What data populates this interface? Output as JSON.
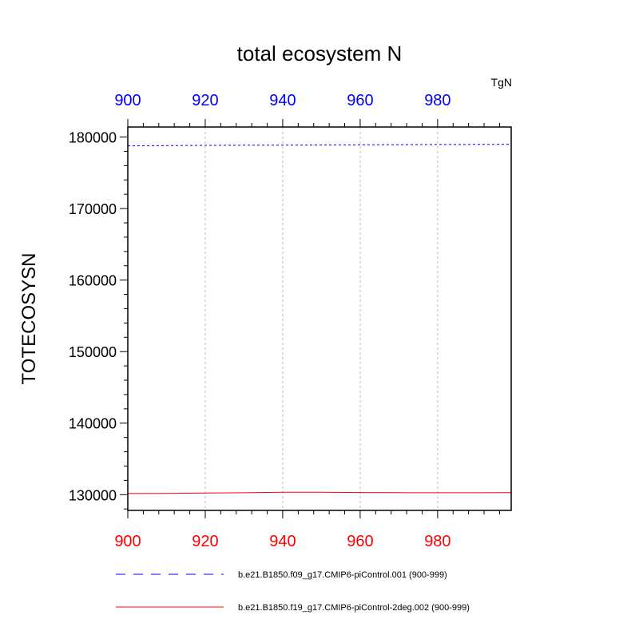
{
  "chart_data": {
    "type": "line",
    "title": "total ecosystem N",
    "ylabel": "TOTECOSYSN",
    "units": "TgN",
    "xlim": [
      900,
      999
    ],
    "ylim": [
      127800,
      181400
    ],
    "x_ticks": [
      900,
      920,
      940,
      960,
      980
    ],
    "y_ticks": [
      130000,
      140000,
      150000,
      160000,
      170000,
      180000
    ],
    "y_tick_labels": [
      "130000",
      "140000",
      "150000",
      "160000",
      "170000",
      "180000"
    ],
    "bottom_axis_color": "#ff0000",
    "top_axis_color": "#0000ff",
    "grid": "vertical dashed at major x ticks",
    "legend_position": "bottom",
    "series": [
      {
        "name": "b.e21.B1850.f09_g17.CMIP6-piControl.001 (900-999)",
        "color": "#0000ff",
        "style": "dashed",
        "x": [
          900,
          910,
          920,
          930,
          940,
          950,
          960,
          970,
          980,
          990,
          999
        ],
        "y": [
          178760,
          178800,
          178830,
          178850,
          178870,
          178890,
          178910,
          178930,
          178950,
          178970,
          178990
        ]
      },
      {
        "name": "b.e21.B1850.f19_g17.CMIP6-piControl-2deg.002 (900-999)",
        "color": "#ff0000",
        "style": "solid",
        "x": [
          900,
          910,
          920,
          930,
          940,
          950,
          960,
          970,
          980,
          990,
          999
        ],
        "y": [
          130160,
          130180,
          130230,
          130270,
          130330,
          130340,
          130300,
          130280,
          130270,
          130270,
          130280
        ]
      }
    ]
  }
}
